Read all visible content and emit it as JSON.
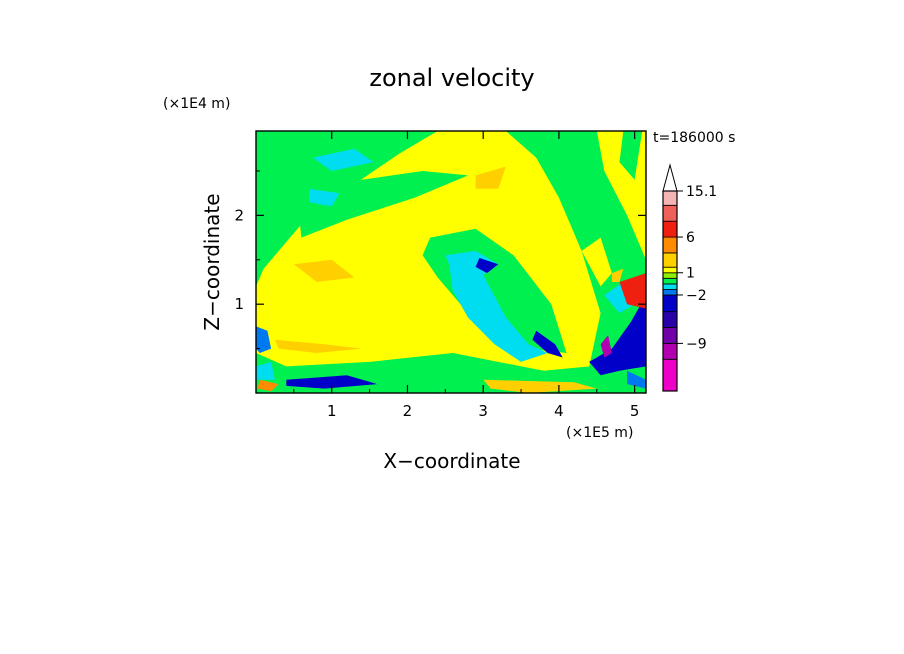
{
  "chart_data": {
    "type": "heatmap",
    "title": "zonal velocity",
    "xlabel": "X−coordinate",
    "ylabel": "Z−coordinate",
    "x_scale_note": "(×1E5 m)",
    "y_scale_note": "(×1E4 m)",
    "time_label": "t=186000 s",
    "xlim": [
      0,
      5.15
    ],
    "ylim": [
      0,
      2.95
    ],
    "x_ticks": [
      {
        "value": 1,
        "label": "1"
      },
      {
        "value": 2,
        "label": "2"
      },
      {
        "value": 3,
        "label": "3"
      },
      {
        "value": 4,
        "label": "4"
      },
      {
        "value": 5,
        "label": "5"
      }
    ],
    "y_ticks": [
      {
        "value": 1,
        "label": "1"
      },
      {
        "value": 2,
        "label": "2"
      }
    ],
    "colorbar": {
      "levels": [
        -15.1,
        -12,
        -9,
        -6,
        -4,
        -2,
        -1,
        0,
        0.5,
        1,
        2,
        4,
        6,
        9,
        12,
        15.1
      ],
      "colors": [
        "#ee00c8",
        "#b000b0",
        "#7000a8",
        "#2a00a8",
        "#0000c8",
        "#0078f0",
        "#00dcf0",
        "#00f050",
        "#90f000",
        "#ffff00",
        "#ffd000",
        "#ff8c00",
        "#f02010",
        "#f06058",
        "#f4b4b4"
      ],
      "tick_labels": [
        {
          "value": 15.1,
          "label": "15.1"
        },
        {
          "value": 6,
          "label": "6"
        },
        {
          "value": 1,
          "label": "1"
        },
        {
          "value": -2,
          "label": "−2"
        },
        {
          "value": -9,
          "label": "−9"
        }
      ]
    },
    "field_regions": [
      {
        "level": 0,
        "points": [
          [
            0,
            0
          ],
          [
            5.15,
            0
          ],
          [
            5.15,
            2.95
          ],
          [
            0,
            2.95
          ]
        ]
      },
      {
        "level": 1,
        "points": [
          [
            0,
            0.45
          ],
          [
            0.4,
            0.3
          ],
          [
            1.5,
            0.35
          ],
          [
            2.6,
            0.45
          ],
          [
            3.8,
            0.25
          ],
          [
            4.4,
            0.3
          ],
          [
            4.55,
            0.9
          ],
          [
            4.3,
            1.6
          ],
          [
            4.0,
            2.2
          ],
          [
            3.7,
            2.65
          ],
          [
            3.3,
            2.95
          ],
          [
            2.4,
            2.95
          ],
          [
            1.9,
            2.7
          ],
          [
            1.3,
            2.35
          ],
          [
            0.6,
            1.9
          ],
          [
            0.1,
            1.4
          ],
          [
            0,
            1.2
          ]
        ]
      },
      {
        "level": 0,
        "points": [
          [
            2.3,
            1.75
          ],
          [
            2.9,
            1.85
          ],
          [
            3.4,
            1.55
          ],
          [
            3.9,
            1.0
          ],
          [
            4.1,
            0.45
          ],
          [
            3.6,
            0.5
          ],
          [
            3.2,
            0.75
          ],
          [
            2.7,
            1.0
          ],
          [
            2.4,
            1.3
          ],
          [
            2.2,
            1.55
          ]
        ]
      },
      {
        "level": 0,
        "points": [
          [
            0.55,
            2.15
          ],
          [
            1.4,
            2.4
          ],
          [
            2.2,
            2.5
          ],
          [
            2.8,
            2.45
          ],
          [
            2.1,
            2.2
          ],
          [
            1.2,
            1.95
          ],
          [
            0.6,
            1.75
          ]
        ]
      },
      {
        "level": 0,
        "points": [
          [
            0.1,
            2.85
          ],
          [
            0.5,
            2.9
          ],
          [
            0.9,
            2.6
          ],
          [
            0.5,
            2.55
          ]
        ]
      },
      {
        "level": -1,
        "points": [
          [
            2.55,
            1.45
          ],
          [
            2.85,
            1.55
          ],
          [
            3.05,
            1.25
          ],
          [
            3.3,
            0.85
          ],
          [
            3.6,
            0.55
          ],
          [
            3.85,
            0.45
          ],
          [
            3.5,
            0.35
          ],
          [
            3.15,
            0.55
          ],
          [
            2.8,
            0.85
          ],
          [
            2.6,
            1.15
          ]
        ]
      },
      {
        "level": -1,
        "points": [
          [
            2.5,
            1.55
          ],
          [
            2.9,
            1.6
          ],
          [
            3.2,
            1.45
          ],
          [
            2.95,
            1.3
          ],
          [
            2.6,
            1.35
          ]
        ]
      },
      {
        "level": -1,
        "points": [
          [
            0.7,
            2.3
          ],
          [
            1.1,
            2.25
          ],
          [
            1.0,
            2.1
          ],
          [
            0.7,
            2.15
          ]
        ]
      },
      {
        "level": -4,
        "points": [
          [
            3.7,
            0.7
          ],
          [
            3.95,
            0.55
          ],
          [
            4.05,
            0.4
          ],
          [
            3.85,
            0.45
          ],
          [
            3.65,
            0.6
          ]
        ]
      },
      {
        "level": -4,
        "points": [
          [
            2.95,
            1.52
          ],
          [
            3.2,
            1.45
          ],
          [
            3.05,
            1.35
          ],
          [
            2.9,
            1.42
          ]
        ]
      },
      {
        "level": 2,
        "points": [
          [
            0.5,
            1.45
          ],
          [
            1.0,
            1.5
          ],
          [
            1.3,
            1.3
          ],
          [
            0.8,
            1.25
          ]
        ]
      },
      {
        "level": 2,
        "points": [
          [
            2.9,
            2.45
          ],
          [
            3.3,
            2.55
          ],
          [
            3.2,
            2.3
          ],
          [
            2.9,
            2.3
          ]
        ]
      },
      {
        "level": 2,
        "points": [
          [
            3.0,
            0.15
          ],
          [
            4.2,
            0.12
          ],
          [
            4.5,
            0.05
          ],
          [
            3.6,
            0.0
          ],
          [
            3.1,
            0.05
          ]
        ]
      },
      {
        "level": 2,
        "points": [
          [
            0.25,
            0.6
          ],
          [
            0.9,
            0.55
          ],
          [
            1.4,
            0.5
          ],
          [
            0.8,
            0.45
          ],
          [
            0.3,
            0.5
          ]
        ]
      },
      {
        "level": 1,
        "points": [
          [
            4.3,
            1.6
          ],
          [
            4.55,
            1.75
          ],
          [
            4.7,
            1.35
          ],
          [
            4.55,
            1.2
          ]
        ]
      },
      {
        "level": -4,
        "points": [
          [
            4.4,
            0.35
          ],
          [
            4.7,
            0.5
          ],
          [
            4.95,
            0.8
          ],
          [
            5.15,
            1.1
          ],
          [
            5.15,
            0.3
          ],
          [
            4.8,
            0.25
          ],
          [
            4.55,
            0.2
          ]
        ]
      },
      {
        "level": -1,
        "points": [
          [
            4.6,
            1.1
          ],
          [
            4.85,
            1.25
          ],
          [
            5.0,
            1.0
          ],
          [
            4.8,
            0.9
          ]
        ]
      },
      {
        "level": 6,
        "points": [
          [
            4.8,
            1.25
          ],
          [
            5.15,
            1.35
          ],
          [
            5.15,
            0.95
          ],
          [
            4.9,
            1.0
          ]
        ]
      },
      {
        "level": 2,
        "points": [
          [
            4.7,
            1.35
          ],
          [
            4.85,
            1.4
          ],
          [
            4.8,
            1.25
          ],
          [
            4.7,
            1.25
          ]
        ]
      },
      {
        "level": -12,
        "points": [
          [
            4.55,
            0.55
          ],
          [
            4.65,
            0.65
          ],
          [
            4.7,
            0.45
          ],
          [
            4.6,
            0.4
          ]
        ]
      },
      {
        "level": -2,
        "points": [
          [
            4.9,
            0.25
          ],
          [
            5.15,
            0.15
          ],
          [
            5.15,
            0.05
          ],
          [
            4.9,
            0.1
          ]
        ]
      },
      {
        "level": -2,
        "points": [
          [
            0,
            0.75
          ],
          [
            0.15,
            0.7
          ],
          [
            0.2,
            0.5
          ],
          [
            0.05,
            0.45
          ],
          [
            0,
            0.5
          ]
        ]
      },
      {
        "level": -1,
        "points": [
          [
            0,
            0.3
          ],
          [
            0.2,
            0.35
          ],
          [
            0.25,
            0.15
          ],
          [
            0,
            0.15
          ]
        ]
      },
      {
        "level": -4,
        "points": [
          [
            0.4,
            0.15
          ],
          [
            1.2,
            0.2
          ],
          [
            1.6,
            0.1
          ],
          [
            0.9,
            0.05
          ],
          [
            0.4,
            0.08
          ]
        ]
      },
      {
        "level": 4,
        "points": [
          [
            0.05,
            0.15
          ],
          [
            0.3,
            0.1
          ],
          [
            0.2,
            0.02
          ],
          [
            0.02,
            0.05
          ]
        ]
      },
      {
        "level": 1,
        "points": [
          [
            4.5,
            2.95
          ],
          [
            5.15,
            2.95
          ],
          [
            5.15,
            1.5
          ],
          [
            4.9,
            2.0
          ],
          [
            4.6,
            2.5
          ]
        ]
      },
      {
        "level": 0,
        "points": [
          [
            4.85,
            2.95
          ],
          [
            5.1,
            2.95
          ],
          [
            5.0,
            2.4
          ],
          [
            4.8,
            2.6
          ]
        ]
      },
      {
        "level": -1,
        "points": [
          [
            0.75,
            2.65
          ],
          [
            1.3,
            2.75
          ],
          [
            1.55,
            2.6
          ],
          [
            1.0,
            2.5
          ]
        ]
      }
    ]
  }
}
